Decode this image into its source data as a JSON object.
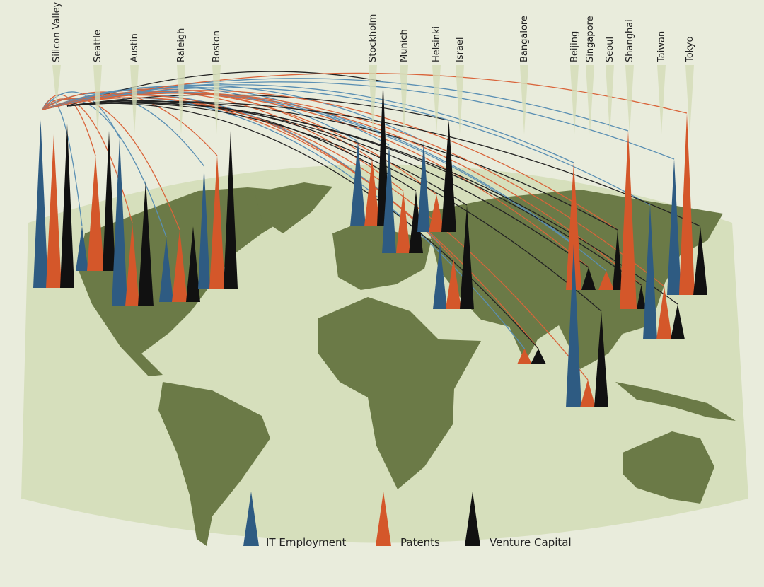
{
  "cities": [
    "Silicon Valley",
    "Seattle",
    "Austin",
    "Raleigh",
    "Boston",
    "Stockholm",
    "Munich",
    "Helsinki",
    "Israel",
    "Bangalore",
    "Beijing",
    "Singapore",
    "Seoul",
    "Shanghai",
    "Taiwan",
    "Tokyo"
  ],
  "legend": {
    "items": [
      "IT Employment",
      "Patents",
      "Venture Capital"
    ]
  }
}
